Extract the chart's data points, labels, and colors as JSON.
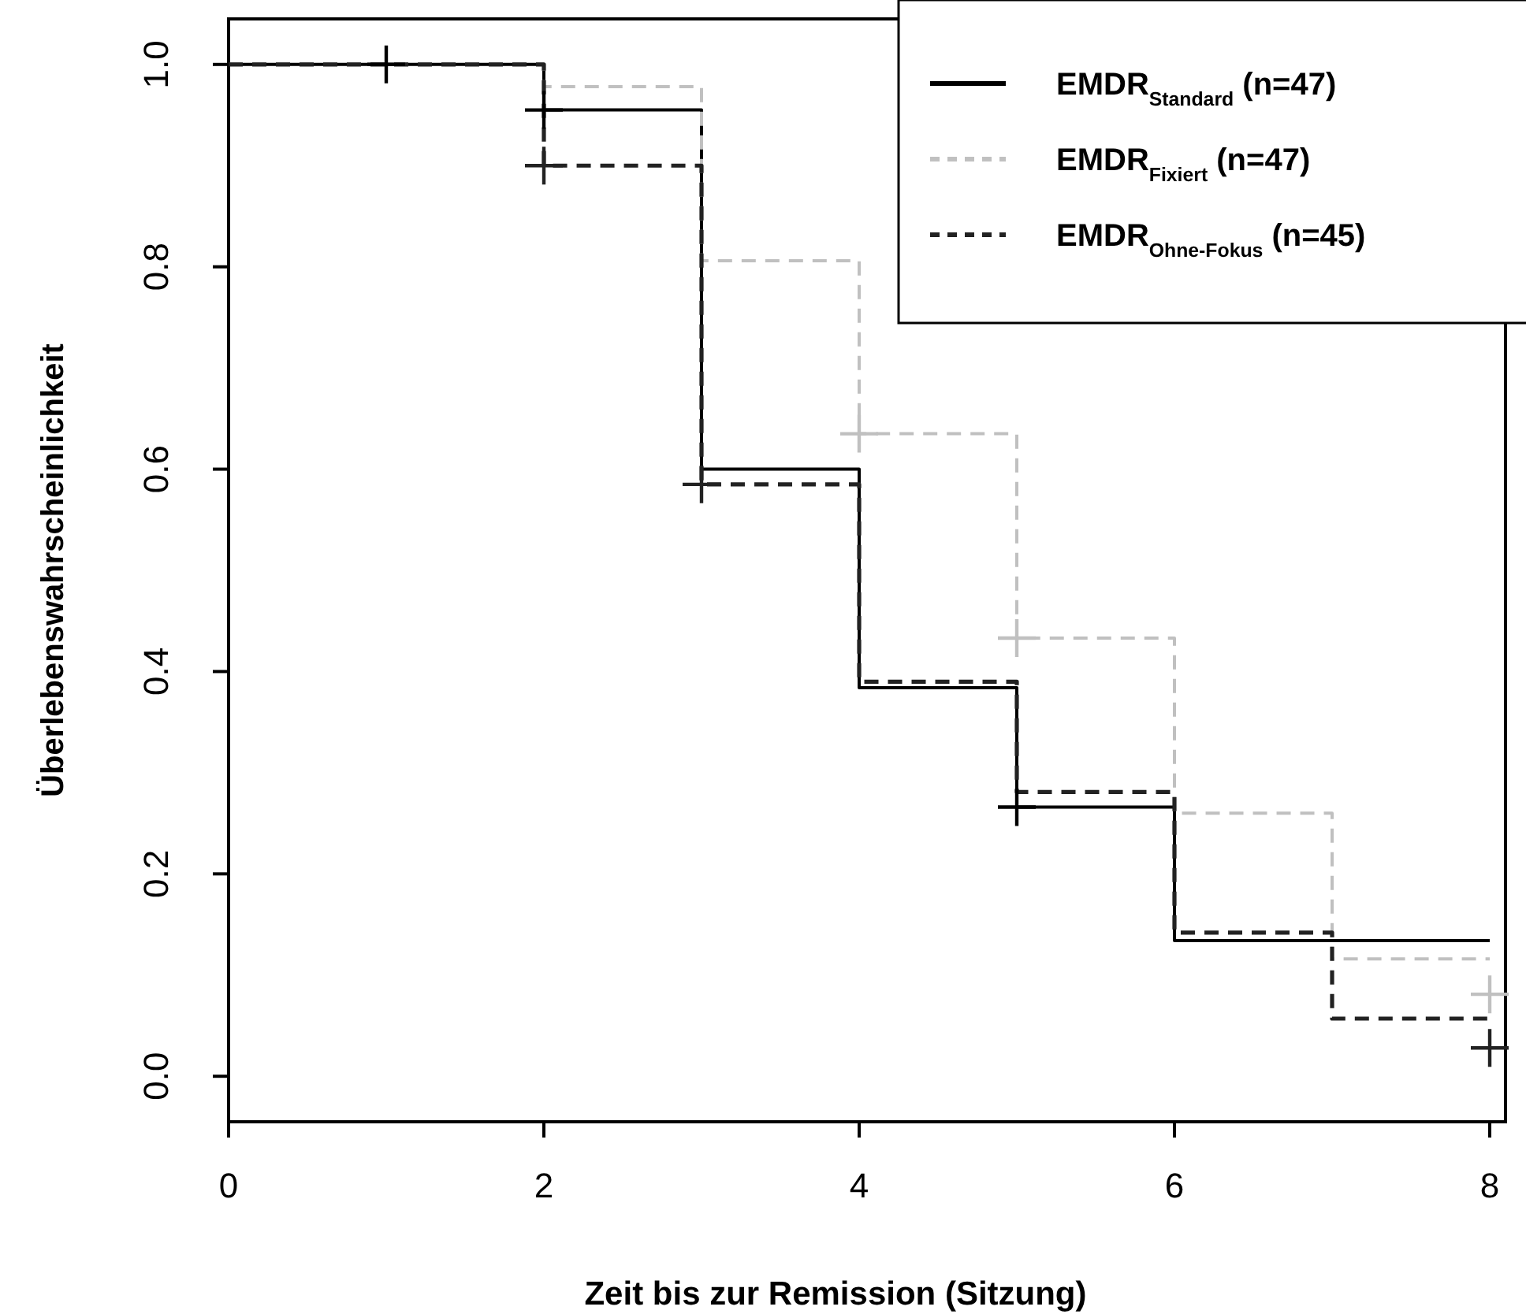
{
  "chart_data": {
    "type": "step",
    "xlabel": "Zeit bis zur Remission (Sitzung)",
    "ylabel": "Überlebenswahrscheinlichkeit",
    "xlim": [
      0,
      8.1
    ],
    "ylim": [
      -0.045,
      1.045
    ],
    "xticks": [
      0,
      2,
      4,
      6,
      8
    ],
    "yticks": [
      {
        "value": 0,
        "label": "0.0"
      },
      {
        "value": 0.2,
        "label": "0.2"
      },
      {
        "value": 0.4,
        "label": "0.4"
      },
      {
        "value": 0.6,
        "label": "0.6"
      },
      {
        "value": 0.8,
        "label": "0.8"
      },
      {
        "value": 1,
        "label": "1.0"
      }
    ],
    "grid": false,
    "legend": "top right",
    "marker": "none",
    "series": [
      {
        "name": "EMDR$_{Standard}$ (n=47)",
        "color": "#000000",
        "line_style": "solid",
        "x": [
          0,
          2,
          3,
          4,
          5,
          6,
          7,
          8
        ],
        "values": [
          1,
          0.955,
          0.6,
          0.384,
          0.266,
          0.134,
          0.134,
          0.134
        ]
      },
      {
        "name": "EMDR$_{Fixiert}$ (n=47)",
        "color": "#c0c0c0",
        "line_style": "dashed",
        "x": [
          0,
          2,
          3,
          4,
          5,
          6,
          7,
          8
        ],
        "values": [
          1,
          0.978,
          0.806,
          0.635,
          0.433,
          0.26,
          0.116,
          0.116
        ]
      },
      {
        "name": "EMDR$_{Ohne-Fokus}$ (n=45)",
        "color": "#222222",
        "line_style": "dashed",
        "x": [
          0,
          2,
          3,
          4,
          5,
          6,
          7,
          8
        ],
        "values": [
          1,
          0.9,
          0.585,
          0.39,
          0.281,
          0.142,
          0.057,
          0.057
        ]
      },
      {
        "type": "scatter",
        "marker": "cross",
        "color": "#000000",
        "x": [
          1,
          2,
          5
        ],
        "values": [
          1,
          0.955,
          0.266
        ]
      },
      {
        "type": "scatter",
        "marker": "cross",
        "color": "#c0c0c0",
        "x": [
          4,
          5,
          8
        ],
        "values": [
          0.635,
          0.433,
          0.081
        ]
      },
      {
        "type": "scatter",
        "marker": "cross",
        "color": "#222222",
        "x": [
          2,
          3,
          8
        ],
        "values": [
          0.9,
          0.585,
          0.028
        ]
      }
    ]
  }
}
